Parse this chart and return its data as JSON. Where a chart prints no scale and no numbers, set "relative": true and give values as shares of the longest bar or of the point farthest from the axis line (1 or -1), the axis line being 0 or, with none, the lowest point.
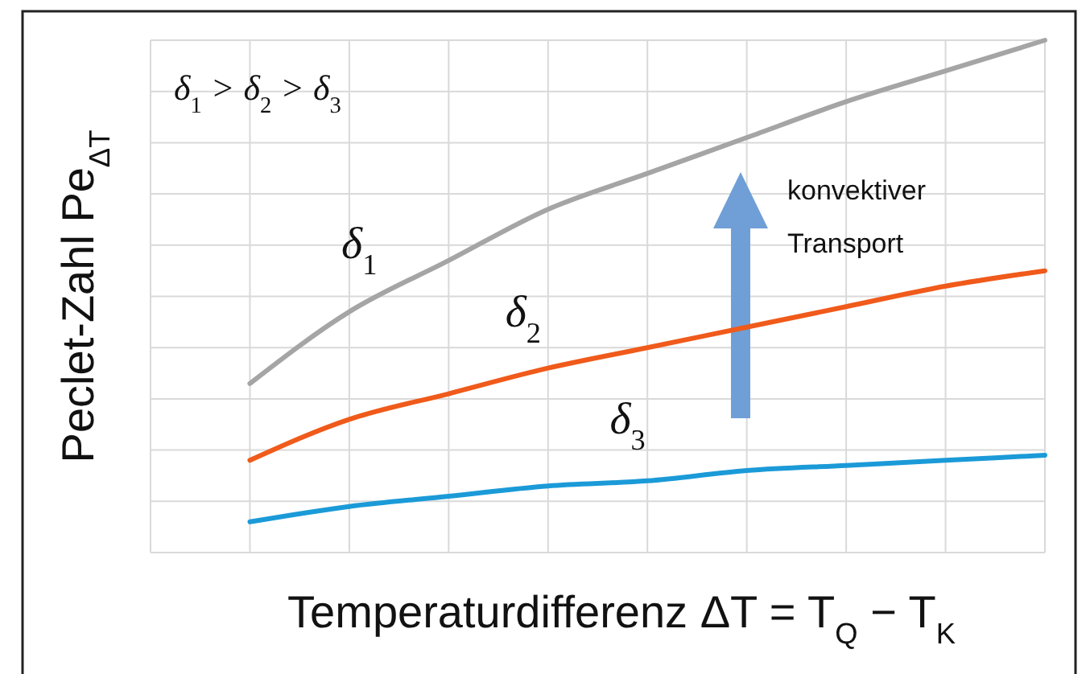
{
  "chart_data": {
    "type": "line",
    "relative": true,
    "xlabel": "Temperaturdifferenz ΔT = T$_{Q}$ − T$_{K}$",
    "ylabel": "Peclet-Zahl Pe$_{ΔT}$",
    "categories": [
      null,
      null,
      null,
      null,
      null,
      null,
      null,
      null,
      null,
      null
    ],
    "series": [
      {
        "name": "δ$_{1}$",
        "color": "#a5a5a5",
        "values": [
          null,
          0.33,
          0.47,
          0.57,
          0.67,
          0.74,
          0.81,
          0.88,
          0.94,
          1
        ]
      },
      {
        "name": "δ$_{2}$",
        "color": "#f05a1a",
        "values": [
          null,
          0.18,
          0.26,
          0.31,
          0.36,
          0.4,
          0.44,
          0.48,
          0.52,
          0.55
        ]
      },
      {
        "name": "δ$_{3}$",
        "color": "#1b9ad8",
        "values": [
          null,
          0.06,
          0.09,
          0.11,
          0.13,
          0.14,
          0.16,
          0.17,
          0.18,
          0.19
        ]
      }
    ],
    "annotations": [
      "δ$_{1}$ > δ$_{2}$ > δ$_{3}$",
      "konvektiver Transport"
    ],
    "grid": true,
    "line_style": "solid",
    "marker": "none"
  }
}
